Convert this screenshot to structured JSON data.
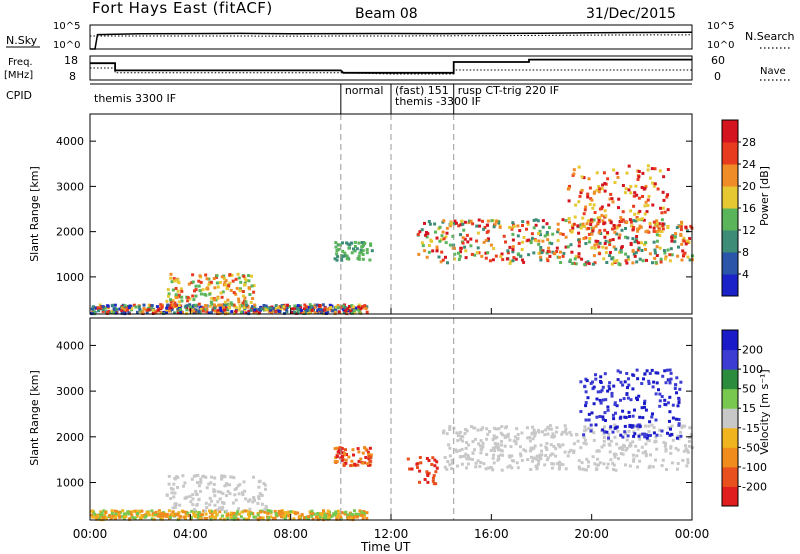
{
  "title": {
    "station": "Fort Hays East (fitACF)",
    "beam": "Beam 08",
    "date": "31/Dec/2015"
  },
  "labels": {
    "nsky": "N.Sky",
    "nsearch": "N.Search",
    "freq_line1": "Freq.",
    "freq_line2": "[MHz]",
    "nave": "Nave",
    "cpid": "CPID",
    "slant_range": "Slant Range [km]",
    "power_label": "Power [dB]",
    "velocity_label": "Velocity [m s⁻¹]",
    "time_label": "Time UT"
  },
  "noise_axis": {
    "left_ticks": [
      "10^5",
      "10^0"
    ],
    "right_ticks": [
      "10^5",
      "10^0"
    ]
  },
  "freq_axis": {
    "left_ticks": [
      "18",
      "8"
    ],
    "right_ticks": [
      "60",
      "0"
    ]
  },
  "cpid_segments": [
    {
      "label": "themis 3300 IF",
      "start_hour": 0
    },
    {
      "label": "normal",
      "start_hour": 10
    },
    {
      "label": "(fast) 151",
      "start_hour": 12
    },
    {
      "label": "themis -3300 IF",
      "start_hour": 12
    },
    {
      "label": "rusp CT-trig 220 IF",
      "start_hour": 14.5
    }
  ],
  "range_ticks": [
    "1000",
    "2000",
    "3000",
    "4000"
  ],
  "time_ticks": [
    "00:00",
    "04:00",
    "08:00",
    "12:00",
    "16:00",
    "20:00",
    "00:00"
  ],
  "power_scale": {
    "ticks": [
      "4",
      "8",
      "12",
      "16",
      "20",
      "24",
      "28"
    ],
    "colors": [
      "#1a22c8",
      "#2a55a8",
      "#3c8c78",
      "#5ab45a",
      "#e6c832",
      "#f08c28",
      "#e83c1e",
      "#d4141e"
    ]
  },
  "velocity_scale": {
    "ticks": [
      "200",
      "100",
      "50",
      "15",
      "-15",
      "-50",
      "-100",
      "-200"
    ],
    "colors": [
      "#1a1ac8",
      "#3c3cd2",
      "#2a8c3c",
      "#78c850",
      "#c8c8c8",
      "#f0b41e",
      "#f08c1e",
      "#e8501e",
      "#e01e1e"
    ]
  },
  "chart_data": [
    {
      "type": "line",
      "title": "",
      "xlabel": "",
      "ylabel": "N.Sky",
      "x_range_hours": [
        0,
        24
      ],
      "series": [
        {
          "name": "N.Sky",
          "style": "solid",
          "x": [
            0,
            0.2,
            0.3,
            2,
            4,
            6,
            8,
            10,
            12,
            14,
            16,
            18,
            20,
            22,
            24
          ],
          "y": [
            1,
            1,
            1000,
            1500,
            1600,
            1800,
            1500,
            1600,
            1700,
            1600,
            1800,
            2000,
            2500,
            2800,
            3000
          ]
        },
        {
          "name": "N.Search",
          "style": "dotted",
          "x": [
            0,
            4,
            8,
            12,
            16,
            20,
            24
          ],
          "y": [
            500,
            520,
            480,
            510,
            600,
            800,
            900
          ]
        }
      ]
    },
    {
      "type": "line",
      "title": "",
      "ylabel": "Freq. [MHz]",
      "x_range_hours": [
        0,
        24
      ],
      "series": [
        {
          "name": "Freq.",
          "style": "solid",
          "x": [
            0,
            1,
            1,
            10,
            10.1,
            12,
            12,
            14.5,
            14.5,
            17.5,
            17.5,
            24
          ],
          "y": [
            15,
            15,
            12,
            12,
            11,
            11,
            11,
            11,
            15.5,
            15.5,
            16.5,
            16.5
          ]
        },
        {
          "name": "Nave",
          "style": "dotted",
          "x": [
            0,
            1,
            1,
            10,
            12,
            14.5,
            14.5,
            24
          ],
          "y": [
            30,
            30,
            18,
            18,
            15,
            15,
            25,
            25
          ]
        }
      ]
    },
    {
      "type": "heatmap",
      "title": "",
      "xlabel": "Time UT",
      "ylabel": "Slant Range [km]",
      "colorbar": "Power [dB]",
      "x_range_hours": [
        0,
        24
      ],
      "ylim": [
        180,
        4600
      ],
      "color_range": [
        0,
        30
      ]
    },
    {
      "type": "heatmap",
      "title": "",
      "xlabel": "Time UT",
      "ylabel": "Slant Range [km]",
      "colorbar": "Velocity [m s⁻¹]",
      "x_range_hours": [
        0,
        24
      ],
      "ylim": [
        180,
        4600
      ],
      "color_range": [
        -200,
        200
      ]
    }
  ]
}
